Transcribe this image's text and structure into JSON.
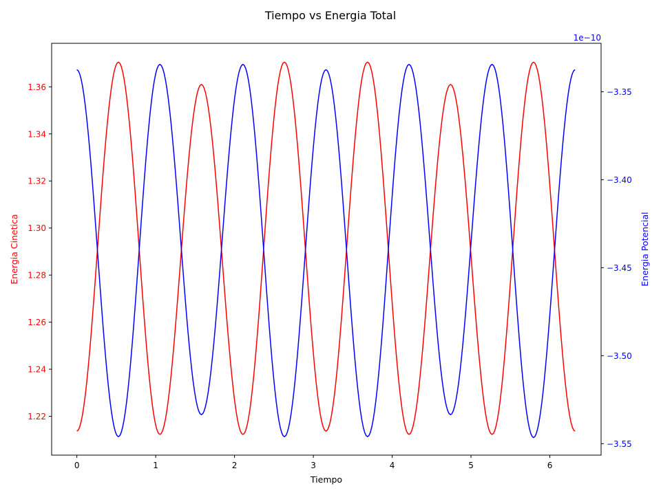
{
  "chart_data": {
    "type": "line",
    "title": "Tiempo vs Energia Total",
    "xlabel": "Tiempo",
    "ylabel_left": "Energia Cinetica",
    "ylabel_right": "Energia Potencial",
    "right_axis_offset_text": "1e−10",
    "xlim": [
      -0.32,
      6.65
    ],
    "ylim_left": [
      1.2035,
      1.3785
    ],
    "ylim_right": [
      -3.5565,
      -3.3225
    ],
    "xticks": [
      0,
      1,
      2,
      3,
      4,
      5,
      6
    ],
    "xtick_labels": [
      "0",
      "1",
      "2",
      "3",
      "4",
      "5",
      "6"
    ],
    "yticks_left": [
      1.22,
      1.24,
      1.26,
      1.28,
      1.3,
      1.32,
      1.34,
      1.36
    ],
    "ytick_labels_left": [
      "1.22",
      "1.24",
      "1.26",
      "1.28",
      "1.30",
      "1.32",
      "1.34",
      "1.36"
    ],
    "yticks_right": [
      -3.55,
      -3.5,
      -3.45,
      -3.4,
      -3.35
    ],
    "ytick_labels_right": [
      "−3.55",
      "−3.50",
      "−3.45",
      "−3.40",
      "−3.35"
    ],
    "grid": false,
    "series": [
      {
        "axis": "left",
        "color": "#ff0000",
        "x": [
          0.0,
          0.527,
          1.053,
          1.58,
          2.107,
          2.633,
          3.16,
          3.687,
          4.213,
          4.74,
          5.267,
          5.793,
          6.32
        ],
        "y": [
          1.2137,
          1.3705,
          1.2123,
          1.361,
          1.2123,
          1.3705,
          1.2137,
          1.3705,
          1.2123,
          1.361,
          1.2123,
          1.3705,
          1.2137
        ]
      },
      {
        "axis": "right",
        "color": "#0000ff",
        "x": [
          0.0,
          0.527,
          1.053,
          1.58,
          2.107,
          2.633,
          3.16,
          3.687,
          4.213,
          4.74,
          5.267,
          5.793,
          6.32
        ],
        "y": [
          -3.3375,
          -3.546,
          -3.3345,
          -3.5335,
          -3.3345,
          -3.546,
          -3.3375,
          -3.546,
          -3.3345,
          -3.5335,
          -3.3345,
          -3.5465,
          -3.3375
        ]
      }
    ]
  },
  "colors": {
    "kinetic": "#ff0000",
    "potential": "#0000ff",
    "axes": "#000000"
  }
}
